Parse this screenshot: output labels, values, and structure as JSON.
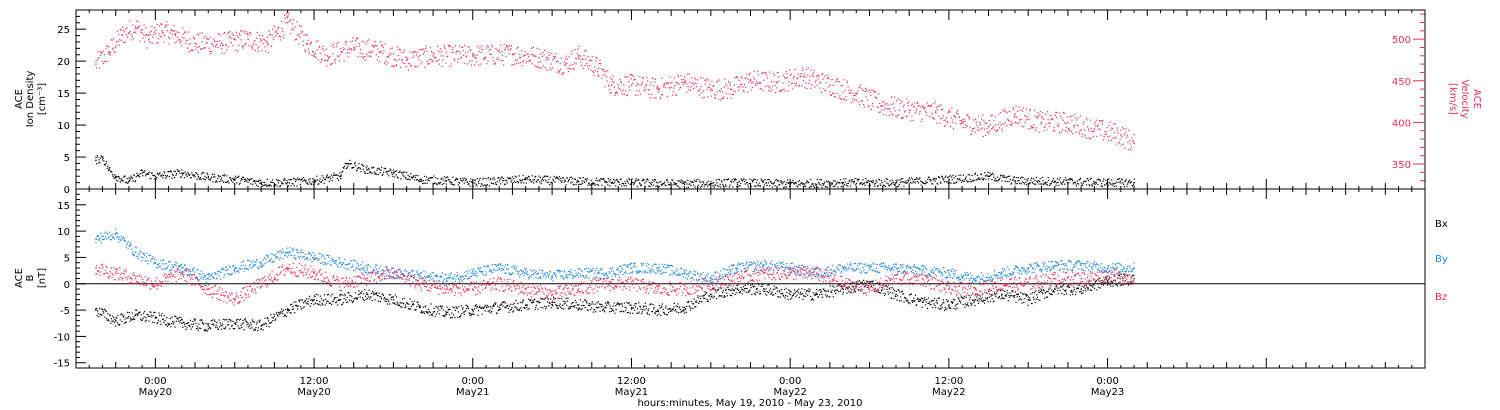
{
  "chart_data": [
    {
      "type": "scatter",
      "panel": "top",
      "ylabel_left": [
        "ACE",
        "Ion Density",
        "[cm⁻³]"
      ],
      "ylabel_right": [
        "ACE",
        "Velocity",
        "[km/s]"
      ],
      "ylim_left": [
        0,
        28
      ],
      "ylim_right": [
        320,
        535
      ],
      "yticks_left": [
        "0",
        "5",
        "10",
        "15",
        "20",
        "25"
      ],
      "yticks_right": [
        "350",
        "400",
        "450",
        "500"
      ],
      "series": [
        {
          "axis": "left",
          "color": "#000000",
          "x": [
            -4.5,
            -4,
            -3.5,
            -3,
            -2,
            -1,
            0,
            2,
            4,
            6,
            8,
            10,
            12,
            14,
            14.5,
            16,
            18,
            20,
            22,
            24,
            28,
            32,
            36,
            40,
            44,
            48,
            52,
            56,
            60,
            63,
            65,
            68,
            72,
            74
          ],
          "y": [
            4.5,
            5.0,
            3.0,
            2.0,
            1.2,
            2.5,
            2.0,
            2.5,
            1.8,
            1.5,
            1.0,
            1.0,
            1.3,
            2.0,
            4.0,
            3.0,
            2.5,
            1.5,
            1.3,
            1.0,
            1.5,
            1.2,
            1.0,
            0.8,
            1.0,
            0.8,
            1.0,
            1.0,
            1.5,
            2.0,
            1.3,
            1.2,
            1.0,
            1.0
          ]
        },
        {
          "axis": "right",
          "color": "#e8305a",
          "x": [
            -4.5,
            -3.5,
            -2.5,
            -1.5,
            -0.5,
            0.5,
            1.5,
            3,
            5,
            7,
            8.5,
            10,
            11.5,
            13,
            15,
            17,
            19,
            21,
            24,
            27,
            29,
            31,
            32,
            33.5,
            34.5,
            36,
            38,
            40,
            42,
            43.5,
            45,
            47,
            49,
            51,
            53,
            55,
            57,
            59,
            61,
            63,
            65,
            67,
            69,
            71,
            73,
            74
          ],
          "y": [
            470,
            485,
            505,
            515,
            500,
            510,
            505,
            495,
            495,
            500,
            495,
            520,
            495,
            480,
            490,
            485,
            475,
            480,
            480,
            482,
            478,
            470,
            480,
            465,
            445,
            445,
            440,
            448,
            440,
            440,
            450,
            448,
            455,
            445,
            435,
            420,
            415,
            412,
            400,
            395,
            410,
            400,
            400,
            392,
            385,
            375
          ]
        }
      ]
    },
    {
      "type": "scatter",
      "panel": "bottom",
      "ylabel": [
        "ACE",
        "B",
        "[nT]"
      ],
      "ylim": [
        -16,
        18
      ],
      "yticks": [
        "-15",
        "-10",
        "-5",
        "0",
        "5",
        "10",
        "15"
      ],
      "zero_line": true,
      "legend": [
        "Bx",
        "By",
        "Bz"
      ],
      "legend_placement": "right",
      "series": [
        {
          "name": "Bx",
          "color": "#000000",
          "x": [
            -4.5,
            -3,
            -1.5,
            0,
            2,
            4,
            6,
            8,
            10,
            12,
            14,
            16,
            18,
            20,
            22,
            24,
            26,
            28,
            30,
            32,
            34,
            36,
            38,
            40,
            42,
            44,
            46,
            48,
            50,
            52,
            54,
            56,
            58,
            60,
            62,
            64,
            66,
            68,
            70,
            72,
            74
          ],
          "y": [
            -5,
            -7,
            -6,
            -6.5,
            -7.5,
            -8,
            -7.5,
            -8,
            -5,
            -3,
            -3,
            -2,
            -3,
            -4.5,
            -5.5,
            -5,
            -4.5,
            -4,
            -3.5,
            -4,
            -4.5,
            -4.5,
            -5,
            -4.5,
            -2,
            -1,
            -1,
            -2,
            -2,
            -1,
            0,
            -2,
            -3.5,
            -4,
            -3,
            -2,
            -3,
            -1,
            -1,
            0.5,
            1
          ]
        },
        {
          "name": "By",
          "color": "#1e88e5",
          "x": [
            -4.5,
            -3,
            -1.5,
            0,
            2,
            4,
            6,
            8,
            10,
            12,
            14,
            16,
            18,
            20,
            22,
            24,
            26,
            28,
            30,
            32,
            34,
            36,
            38,
            40,
            42,
            44,
            46,
            48,
            50,
            52,
            54,
            56,
            58,
            60,
            62,
            64,
            66,
            68,
            70,
            72,
            74
          ],
          "y": [
            8.5,
            9.5,
            6,
            4,
            3,
            1,
            3,
            4,
            6,
            5,
            4,
            3,
            2,
            1.5,
            1,
            2,
            3,
            2,
            1.5,
            2,
            2,
            3,
            3,
            2,
            1,
            3,
            3.5,
            3,
            2,
            3,
            3,
            3,
            2.5,
            2,
            1,
            2,
            3,
            3.5,
            3.5,
            3,
            3
          ]
        },
        {
          "name": "Bz",
          "color": "#e8305a",
          "x": [
            -4.5,
            -3,
            -1.5,
            0,
            2,
            4,
            6,
            8,
            10,
            12,
            14,
            16,
            18,
            20,
            22,
            24,
            26,
            28,
            30,
            32,
            34,
            36,
            38,
            40,
            42,
            44,
            46,
            48,
            50,
            52,
            54,
            56,
            58,
            60,
            62,
            64,
            66,
            68,
            70,
            72,
            74
          ],
          "y": [
            3,
            2,
            1,
            0,
            2,
            -1,
            -3,
            0,
            3,
            2,
            0,
            1,
            2,
            0,
            -1,
            -1,
            0,
            -1,
            -2,
            -1,
            0,
            0,
            -1,
            -1,
            0,
            1,
            2,
            2,
            2,
            0,
            -1,
            1,
            1,
            -1,
            -1,
            0,
            0,
            1,
            1,
            1.5,
            1
          ]
        }
      ]
    }
  ],
  "x_axis": {
    "xlim": [
      -6,
      96
    ],
    "ticks": [
      {
        "value": 0,
        "time": "0:00",
        "date": "May20"
      },
      {
        "value": 12,
        "time": "12:00",
        "date": "May20"
      },
      {
        "value": 24,
        "time": "0:00",
        "date": "May21"
      },
      {
        "value": 36,
        "time": "12:00",
        "date": "May21"
      },
      {
        "value": 48,
        "time": "0:00",
        "date": "May22"
      },
      {
        "value": 60,
        "time": "12:00",
        "date": "May22"
      },
      {
        "value": 72,
        "time": "0:00",
        "date": "May23"
      }
    ],
    "xlabel": "hours:minutes, May 19, 2010 - May 23, 2010"
  },
  "colors": {
    "black": "#000000",
    "red": "#e8305a",
    "blue": "#1e88e5"
  }
}
